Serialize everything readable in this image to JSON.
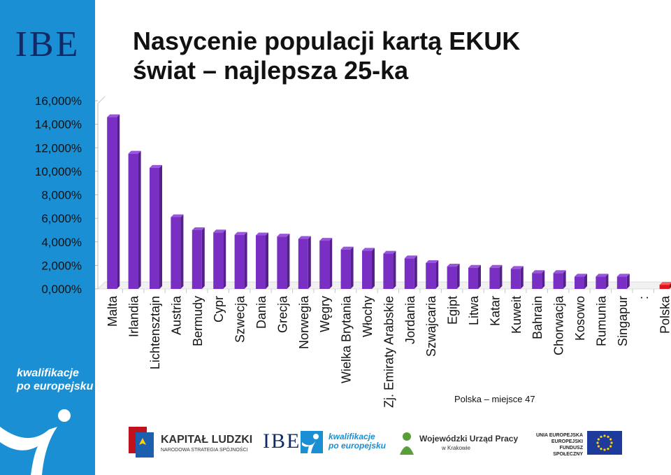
{
  "sidebar": {
    "logo_text": "IBE",
    "tagline_line1": "kwalifikacje",
    "tagline_line2": "po europejsku"
  },
  "title": {
    "line1": "Nasycenie populacji kartą EKUK",
    "line2": "świat – najlepsza 25-ka"
  },
  "note": "Polska – miejsce 47",
  "colors": {
    "bar": "#7a2fc4",
    "bar_top": "#9a55dd",
    "highlight": "#e0141e",
    "sidebar": "#1b8fd3"
  },
  "chart_data": {
    "type": "bar",
    "title": "Nasycenie populacji kartą EKUK świat – najlepsza 25-ka",
    "categories": [
      "Malta",
      "Irlandia",
      "Lichtensztajn",
      "Austria",
      "Bermudy",
      "Cypr",
      "Szwecja",
      "Dania",
      "Grecja",
      "Norwegia",
      "Węgry",
      "Wielka Brytania",
      "Włochy",
      "Zj. Emiraty Arabskie",
      "Jordania",
      "Szwajcaria",
      "Egipt",
      "Litwa",
      "Katar",
      "Kuweit",
      "Bahrain",
      "Chorwacja",
      "Kosowo",
      "Rumunia",
      "Singapur",
      ":",
      "Polska"
    ],
    "values": [
      14.6,
      11.5,
      10.3,
      6.1,
      5.0,
      4.8,
      4.6,
      4.55,
      4.45,
      4.25,
      4.1,
      3.35,
      3.25,
      3.0,
      2.6,
      2.2,
      1.9,
      1.8,
      1.8,
      1.7,
      1.35,
      1.35,
      1.05,
      1.05,
      1.05,
      null,
      0.35
    ],
    "highlight": [
      "Polska"
    ],
    "yticks": [
      "0,000%",
      "2,000%",
      "4,000%",
      "6,000%",
      "8,000%",
      "10,000%",
      "12,000%",
      "14,000%",
      "16,000%"
    ],
    "ylim": [
      0,
      16
    ],
    "xlabel": "",
    "ylabel": ""
  },
  "footer": {
    "kapital_title": "KAPITAŁ LUDZKI",
    "kapital_sub": "NARODOWA STRATEGIA SPÓJNOŚCI",
    "ibe": "IBE",
    "kpe_line1": "kwalifikacje",
    "kpe_line2": "po europejsku",
    "wup_title": "Wojewódzki Urząd Pracy",
    "wup_sub": "w Krakowie",
    "ue_line1": "UNIA EUROPEJSKA",
    "ue_line2": "EUROPEJSKI",
    "ue_line3": "FUNDUSZ SPOŁECZNY"
  }
}
